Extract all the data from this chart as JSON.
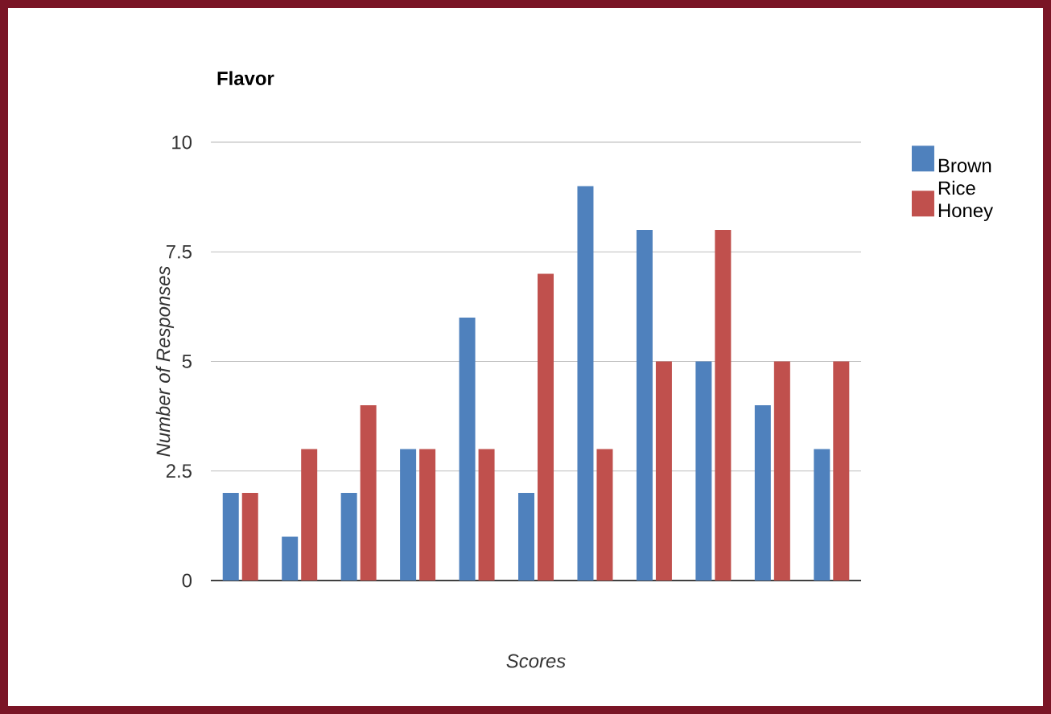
{
  "chart_data": {
    "type": "bar",
    "title": "Flavor",
    "xlabel": "Scores",
    "ylabel": "Number of Responses",
    "categories": [
      null,
      null,
      null,
      null,
      null,
      null,
      null,
      null,
      null,
      null,
      null
    ],
    "series": [
      {
        "name": "Brown Rice",
        "color": "#4f81bd",
        "values": [
          2,
          1,
          2,
          3,
          6,
          2,
          9,
          8,
          5,
          4,
          3
        ]
      },
      {
        "name": "Honey",
        "color": "#c0504d",
        "values": [
          2,
          3,
          4,
          3,
          3,
          7,
          3,
          5,
          8,
          5,
          5
        ]
      }
    ],
    "ylim": [
      0,
      10
    ],
    "yticks": [
      0,
      2.5,
      5,
      7.5,
      10
    ],
    "grid": "y",
    "legend": "top right"
  }
}
